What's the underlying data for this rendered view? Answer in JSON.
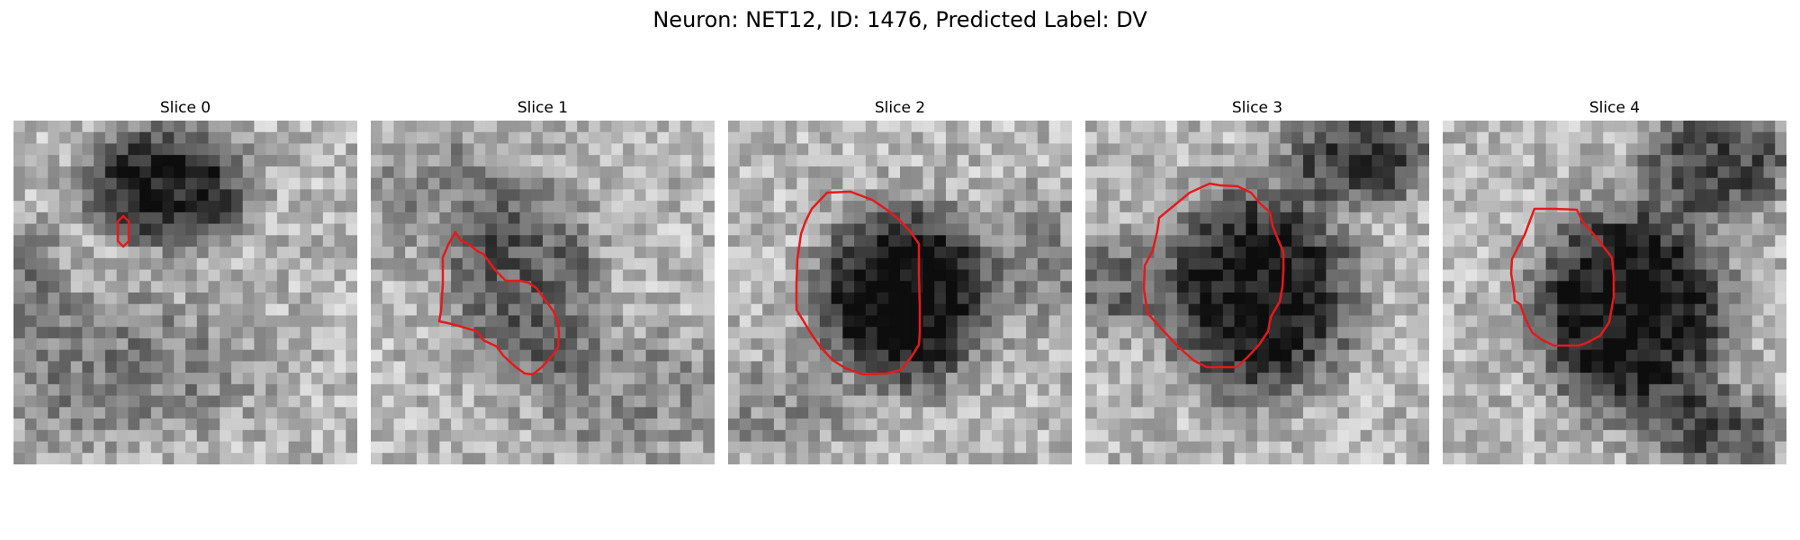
{
  "title": "Neuron: NET12, ID: 1476, Predicted Label: DV",
  "contour_color": "#e41a1c",
  "panels": [
    {
      "label": "Slice 0",
      "image": "grayscale-microscopy-slice-0"
    },
    {
      "label": "Slice 1",
      "image": "grayscale-microscopy-slice-1"
    },
    {
      "label": "Slice 2",
      "image": "grayscale-microscopy-slice-2"
    },
    {
      "label": "Slice 3",
      "image": "grayscale-microscopy-slice-3"
    },
    {
      "label": "Slice 4",
      "image": "grayscale-microscopy-slice-4"
    }
  ]
}
